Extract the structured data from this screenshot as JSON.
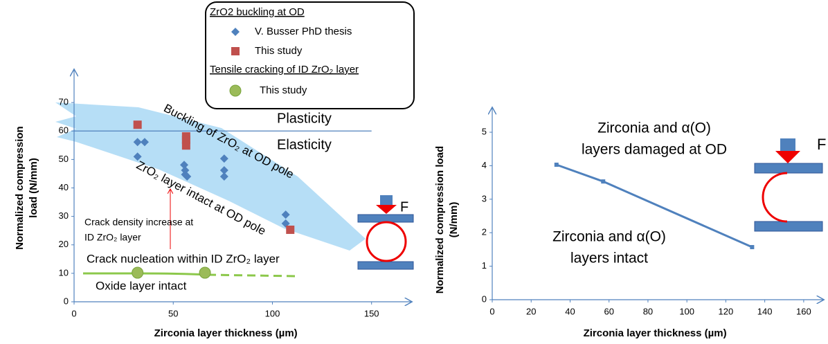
{
  "chart_data": [
    {
      "type": "scatter",
      "x_label": "Zirconia layer thickness (µm)",
      "y_label": [
        "Normalized compression",
        "load  (N/mm)"
      ],
      "xlim": [
        0,
        170
      ],
      "ylim": [
        0,
        80
      ],
      "xticks": [
        0,
        50,
        100,
        150
      ],
      "yticks": [
        0,
        10,
        20,
        30,
        40,
        50,
        60,
        70
      ],
      "hline": 60,
      "legend_headings": [
        "ZrO2 buckling at OD",
        "Tensile cracking of ID ZrO₂ layer"
      ],
      "series": [
        {
          "name": "V. Busser PhD thesis",
          "color": "#4f81bd",
          "marker": "diamond",
          "x": [
            32,
            35.6,
            32,
            55.5,
            56,
            56,
            57,
            75.7,
            75.7,
            75.7,
            106.7,
            106.7
          ],
          "values": [
            56.1,
            56.1,
            51,
            48.1,
            46.2,
            44.7,
            44,
            50.3,
            46.2,
            44,
            30.6,
            27.5
          ]
        },
        {
          "name": "This study",
          "color": "#c0504d",
          "marker": "square",
          "x": [
            32,
            56.5,
            56.5,
            56.5,
            109
          ],
          "values": [
            62.2,
            58.1,
            56.9,
            54.9,
            25.3
          ]
        },
        {
          "name": "This study",
          "color": "#9bbb59",
          "marker": "circle",
          "x": [
            32,
            66
          ],
          "values": [
            10.2,
            10.2
          ]
        }
      ],
      "annotations": [
        "Plasticity",
        "Elasticity",
        "Buckling of ZrO₂ at OD pole",
        "ZrO₂ layer intact at OD pole",
        [
          "Crack density increase at",
          "ID ZrO₂ layer"
        ],
        "Crack nucleation within ID ZrO₂ layer",
        "Oxide layer intact",
        "F"
      ]
    },
    {
      "type": "line",
      "x_label": "Zirconia layer thickness (µm)",
      "y_label": [
        "Normalized compression  load",
        "(N/mm)"
      ],
      "xlim": [
        0,
        170
      ],
      "ylim": [
        0,
        5.6
      ],
      "xticks": [
        0,
        20,
        40,
        60,
        80,
        100,
        120,
        140,
        160
      ],
      "yticks": [
        0,
        1,
        2,
        3,
        4,
        5
      ],
      "series": [
        {
          "color": "#4f81bd",
          "x": [
            33,
            57,
            133.5
          ],
          "values": [
            4.03,
            3.53,
            1.57
          ]
        }
      ],
      "annotations": [
        [
          "Zirconia and α(O)",
          "layers damaged at OD"
        ],
        [
          "Zirconia and α(O)",
          "layers intact"
        ],
        "F"
      ]
    }
  ]
}
